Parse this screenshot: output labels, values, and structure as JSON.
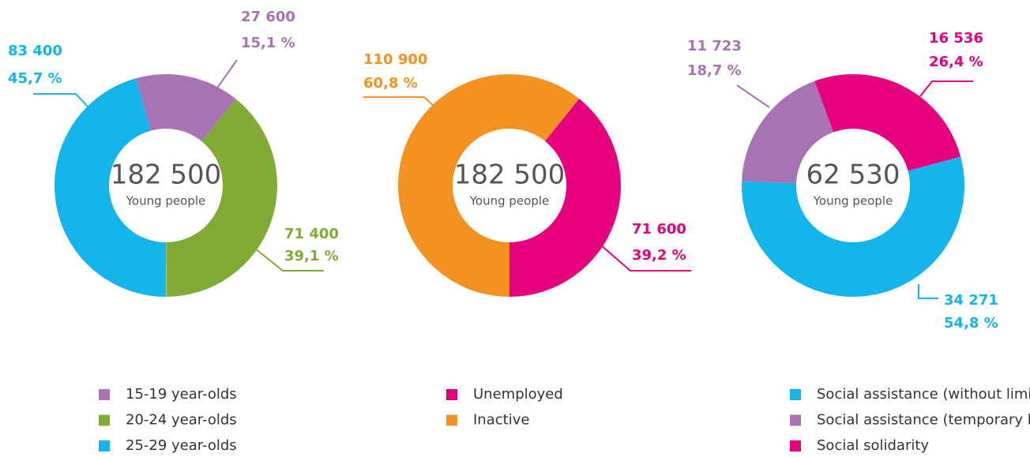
{
  "chart_data": [
    {
      "type": "donut",
      "total": {
        "value": 182500,
        "label": "182 500"
      },
      "center_text": "Young people",
      "categories": [
        "15-19 year-olds",
        "20-24 year-olds",
        "25-29 year-olds"
      ],
      "values": [
        27600,
        71400,
        83400
      ],
      "value_labels": [
        "27 600",
        "71 400",
        "83 400"
      ],
      "percents": [
        15.1,
        39.1,
        45.7
      ],
      "percent_labels": [
        "15,1 %",
        "39,1 %",
        "45,7 %"
      ],
      "colors": [
        "#a873b3",
        "#80ac35",
        "#13b5ea"
      ]
    },
    {
      "type": "donut",
      "total": {
        "value": 182500,
        "label": "182 500"
      },
      "center_text": "Young people",
      "categories": [
        "Unemployed",
        "Inactive"
      ],
      "values": [
        71600,
        110900
      ],
      "value_labels": [
        "71 600",
        "110 900"
      ],
      "percents": [
        39.2,
        60.8
      ],
      "percent_labels": [
        "39,2 %",
        "60,8 %"
      ],
      "colors": [
        "#e6007e",
        "#f39221"
      ]
    },
    {
      "type": "donut",
      "total": {
        "value": 62530,
        "label": "62 530"
      },
      "center_text": "Young people",
      "categories": [
        "Social assistance (without limitations)",
        "Social assistance (temporary limitations)",
        "Social solidarity"
      ],
      "values": [
        34271,
        11723,
        16536
      ],
      "value_labels": [
        "34 271",
        "11 723",
        "16 536"
      ],
      "percents": [
        54.8,
        18.7,
        26.4
      ],
      "percent_labels": [
        "54,8 %",
        "18,7 %",
        "26,4 %"
      ],
      "colors": [
        "#13b5ea",
        "#a873b3",
        "#e6007e"
      ]
    }
  ]
}
